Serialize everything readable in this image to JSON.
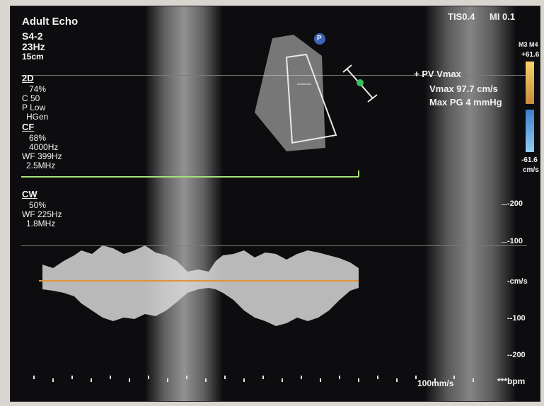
{
  "header": {
    "app_mode": "Adult Echo",
    "tis": "TIS0.4",
    "mi": "MI 0.1"
  },
  "probe": {
    "name": "S4-2",
    "frame_rate": "23Hz",
    "depth": "15cm"
  },
  "settings_2d": {
    "label": "2D",
    "gain": "74%",
    "compression": "C 50",
    "power": "P Low",
    "frequency": "HGen"
  },
  "settings_cf": {
    "label": "CF",
    "gain": "68%",
    "prf": "4000Hz",
    "wall_filter": "WF 399Hz",
    "frequency": "2.5MHz"
  },
  "settings_cw": {
    "label": "CW",
    "gain": "50%",
    "wall_filter": "WF 225Hz",
    "frequency": "1.8MHz"
  },
  "measurement": {
    "title": "+ PV Vmax",
    "vmax": "Vmax   97.7 cm/s",
    "max_pg": "Max PG   4 mmHg"
  },
  "colorbar": {
    "map": "M3 M4",
    "top": "+61.6",
    "bottom": "-61.6",
    "unit": "cm/s",
    "positive_color": "#f2b24a",
    "negative_color": "#6aa8e8"
  },
  "velocity_scale": {
    "labels": [
      "-200",
      "-100",
      "-cm/s",
      "--100",
      "--200"
    ]
  },
  "sweep": {
    "speed": "100mm/s",
    "heart_rate": "***bpm"
  },
  "markers": {
    "probe_badge": "P"
  }
}
